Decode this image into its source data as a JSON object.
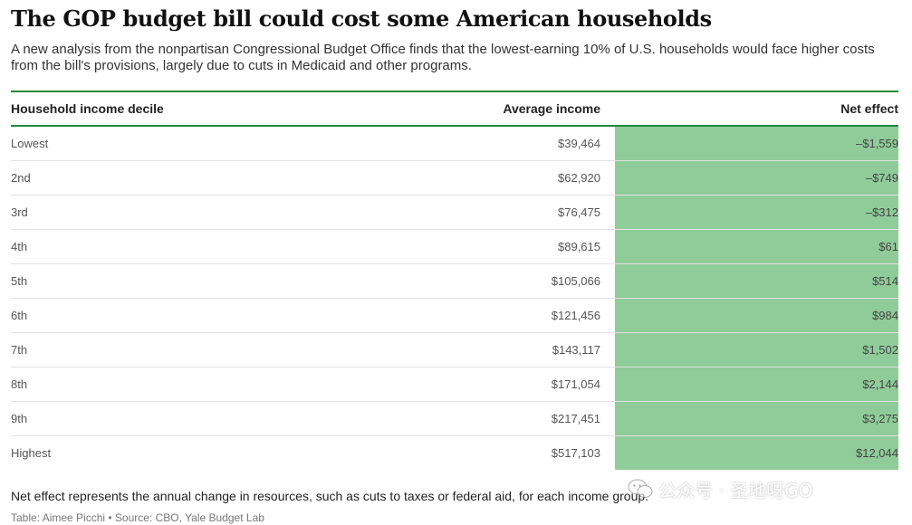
{
  "title": "The GOP budget bill could cost some American households",
  "subtitle": "A new analysis from the nonpartisan Congressional Budget Office finds that the lowest-earning 10% of U.S. households would face higher costs from the bill's provisions, largely due to cuts in Medicaid and other programs.",
  "chart_data": {
    "type": "table",
    "columns": [
      "Household income decile",
      "Average income",
      "Net effect"
    ],
    "rows": [
      {
        "decile": "Lowest",
        "income": "$39,464",
        "net": "–$1,559"
      },
      {
        "decile": "2nd",
        "income": "$62,920",
        "net": "–$749"
      },
      {
        "decile": "3rd",
        "income": "$76,475",
        "net": "–$312"
      },
      {
        "decile": "4th",
        "income": "$89,615",
        "net": "$61"
      },
      {
        "decile": "5th",
        "income": "$105,066",
        "net": "$514"
      },
      {
        "decile": "6th",
        "income": "$121,456",
        "net": "$984"
      },
      {
        "decile": "7th",
        "income": "$143,117",
        "net": "$1,502"
      },
      {
        "decile": "8th",
        "income": "$171,054",
        "net": "$2,144"
      },
      {
        "decile": "9th",
        "income": "$217,451",
        "net": "$3,275"
      },
      {
        "decile": "Highest",
        "income": "$517,103",
        "net": "$12,044"
      }
    ],
    "income_values": [
      39464,
      62920,
      76475,
      89615,
      105066,
      121456,
      143117,
      171054,
      217451,
      517103
    ],
    "net_effect_values": [
      -1559,
      -749,
      -312,
      61,
      514,
      984,
      1502,
      2144,
      3275,
      12044
    ],
    "highlight_color": "#8fcc99",
    "rule_color": "#1f8a3b"
  },
  "footnote": "Net effect represents the annual change in resources, such as cuts to taxes or federal aid, for each income group.",
  "credit": "Table: Aimee Picchi • Source: CBO, Yale Budget Lab",
  "watermark": {
    "text": "公众号 · 圣地呀GO",
    "icon": "wechat-icon"
  }
}
